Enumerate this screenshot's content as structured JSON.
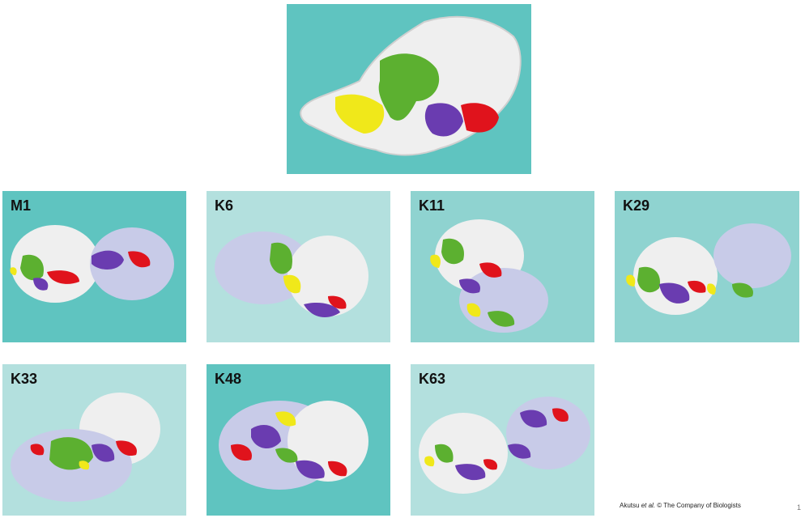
{
  "colors": {
    "teal_dark": "#5fc4c0",
    "teal_mid": "#8fd3d0",
    "teal_light": "#b3e0de",
    "white_surface": "#efefef",
    "lavender": "#c8cbe8",
    "green": "#5cb030",
    "yellow": "#f0e81a",
    "purple": "#6a3cb0",
    "red": "#e0131c"
  },
  "panels": [
    {
      "id": "top",
      "label": ""
    },
    {
      "id": "m1",
      "label": "M1"
    },
    {
      "id": "k6",
      "label": "K6"
    },
    {
      "id": "k11",
      "label": "K11"
    },
    {
      "id": "k29",
      "label": "K29"
    },
    {
      "id": "k33",
      "label": "K33"
    },
    {
      "id": "k48",
      "label": "K48"
    },
    {
      "id": "k63",
      "label": "K63"
    }
  ],
  "credit": {
    "prefix": "Akutsu ",
    "etal": "et al.",
    "suffix": " © The Company of Biologists"
  },
  "page_number": "1"
}
